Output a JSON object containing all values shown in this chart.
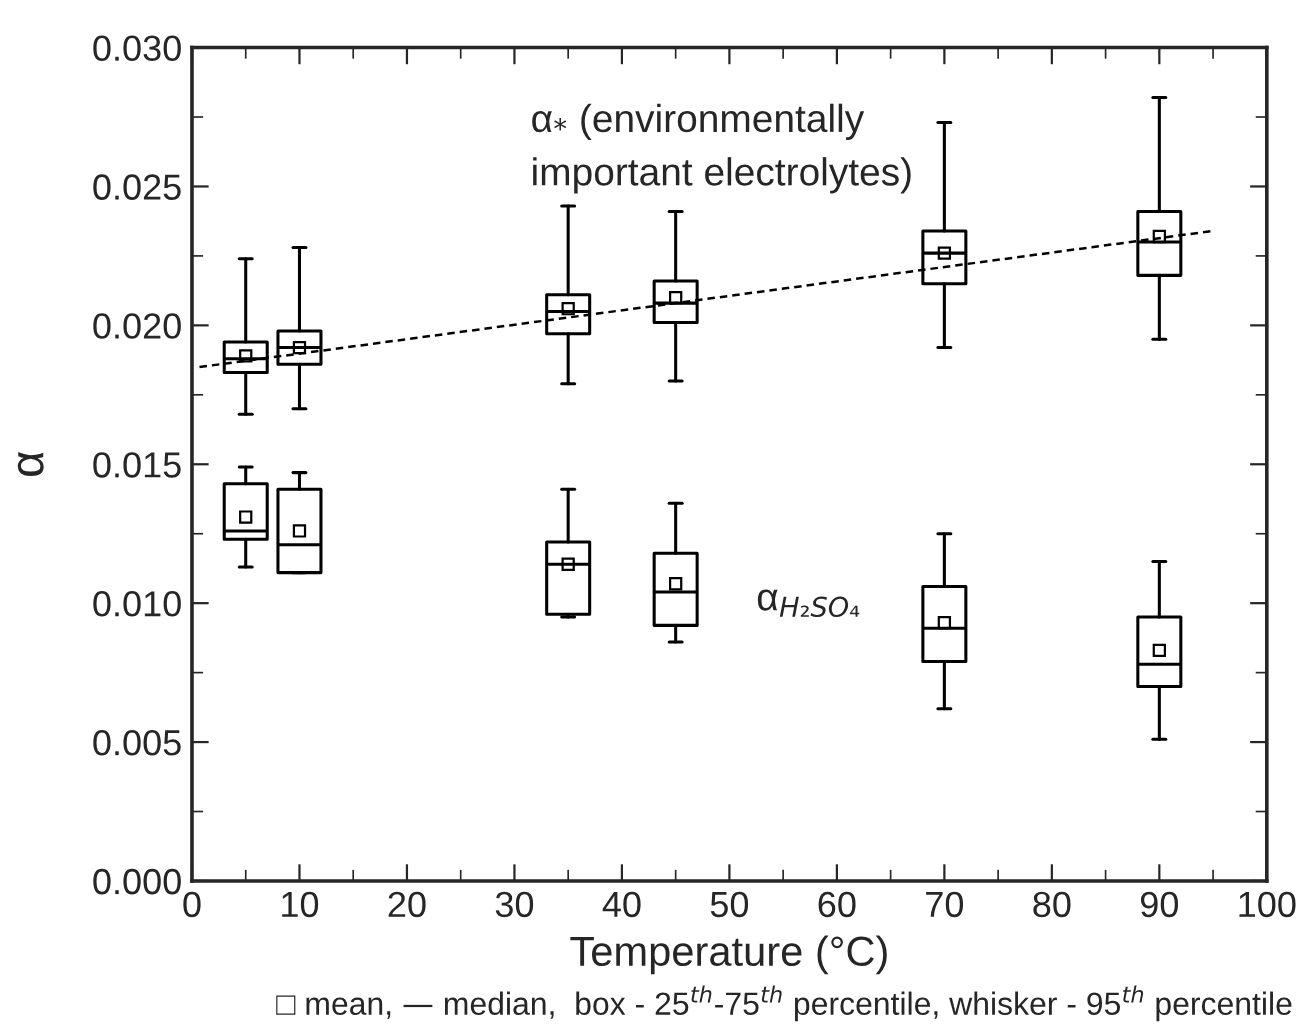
{
  "chart_data": {
    "type": "box",
    "xlabel": "Temperature (°C)",
    "ylabel": "α",
    "x": [
      5,
      10,
      35,
      45,
      70,
      90
    ],
    "series": [
      {
        "marker": "square",
        "color": "#000000",
        "boxes": [
          {
            "low": 0.0168,
            "q1": 0.0183,
            "median": 0.0188,
            "q3": 0.0194,
            "high": 0.0224,
            "mean": 0.0189
          },
          {
            "low": 0.017,
            "q1": 0.0186,
            "median": 0.0192,
            "q3": 0.0198,
            "high": 0.0228,
            "mean": 0.0192
          },
          {
            "low": 0.0179,
            "q1": 0.0197,
            "median": 0.0205,
            "q3": 0.0211,
            "high": 0.0243,
            "mean": 0.0206
          },
          {
            "low": 0.018,
            "q1": 0.0201,
            "median": 0.0208,
            "q3": 0.0216,
            "high": 0.0241,
            "mean": 0.021
          },
          {
            "low": 0.0192,
            "q1": 0.0215,
            "median": 0.0226,
            "q3": 0.0234,
            "high": 0.0273,
            "mean": 0.0226
          },
          {
            "low": 0.0195,
            "q1": 0.0218,
            "median": 0.023,
            "q3": 0.0241,
            "high": 0.0282,
            "mean": 0.0232
          }
        ]
      },
      {
        "marker": "square",
        "color": "#000000",
        "boxes": [
          {
            "low": 0.0113,
            "q1": 0.0123,
            "median": 0.0126,
            "q3": 0.0143,
            "high": 0.0149,
            "mean": 0.0131
          },
          {
            "low": 0.0111,
            "q1": 0.0111,
            "median": 0.0121,
            "q3": 0.0141,
            "high": 0.0147,
            "mean": 0.0126
          },
          {
            "low": 0.0095,
            "q1": 0.0096,
            "median": 0.0114,
            "q3": 0.0122,
            "high": 0.0141,
            "mean": 0.0114
          },
          {
            "low": 0.0086,
            "q1": 0.0092,
            "median": 0.0104,
            "q3": 0.0118,
            "high": 0.0136,
            "mean": 0.0107
          },
          {
            "low": 0.0062,
            "q1": 0.0079,
            "median": 0.0091,
            "q3": 0.0106,
            "high": 0.0125,
            "mean": 0.0093
          },
          {
            "low": 0.0051,
            "q1": 0.007,
            "median": 0.0078,
            "q3": 0.0095,
            "high": 0.0115,
            "mean": 0.0083
          }
        ]
      },
      {
        "type": "line",
        "color": "#000000",
        "line_style": "dashed",
        "x": [
          0.7,
          95
        ],
        "values": [
          0.0185,
          0.0234
        ]
      }
    ],
    "xlim": [
      0,
      100
    ],
    "xticks": [
      0,
      10,
      20,
      30,
      40,
      50,
      60,
      70,
      80,
      90,
      100
    ],
    "ylim": [
      0,
      0.03
    ],
    "yticks": [
      {
        "value": 0,
        "label": "0.000"
      },
      {
        "value": 0.005,
        "label": "0.005"
      },
      {
        "value": 0.01,
        "label": "0.010"
      },
      {
        "value": 0.015,
        "label": "0.015"
      },
      {
        "value": 0.02,
        "label": "0.020"
      },
      {
        "value": 0.025,
        "label": "0.025"
      },
      {
        "value": 0.03,
        "label": "0.030"
      }
    ],
    "grid": false,
    "legend": false,
    "annotations": [
      "α$_{*}$ (environmentally\nimportant electrolytes)",
      "α$_{H₂SO₄}$",
      "□ mean, — median,  box - 25$^{th}$-75$^{th}$ percentile, whisker - 95$^{th}$ percentile"
    ]
  }
}
